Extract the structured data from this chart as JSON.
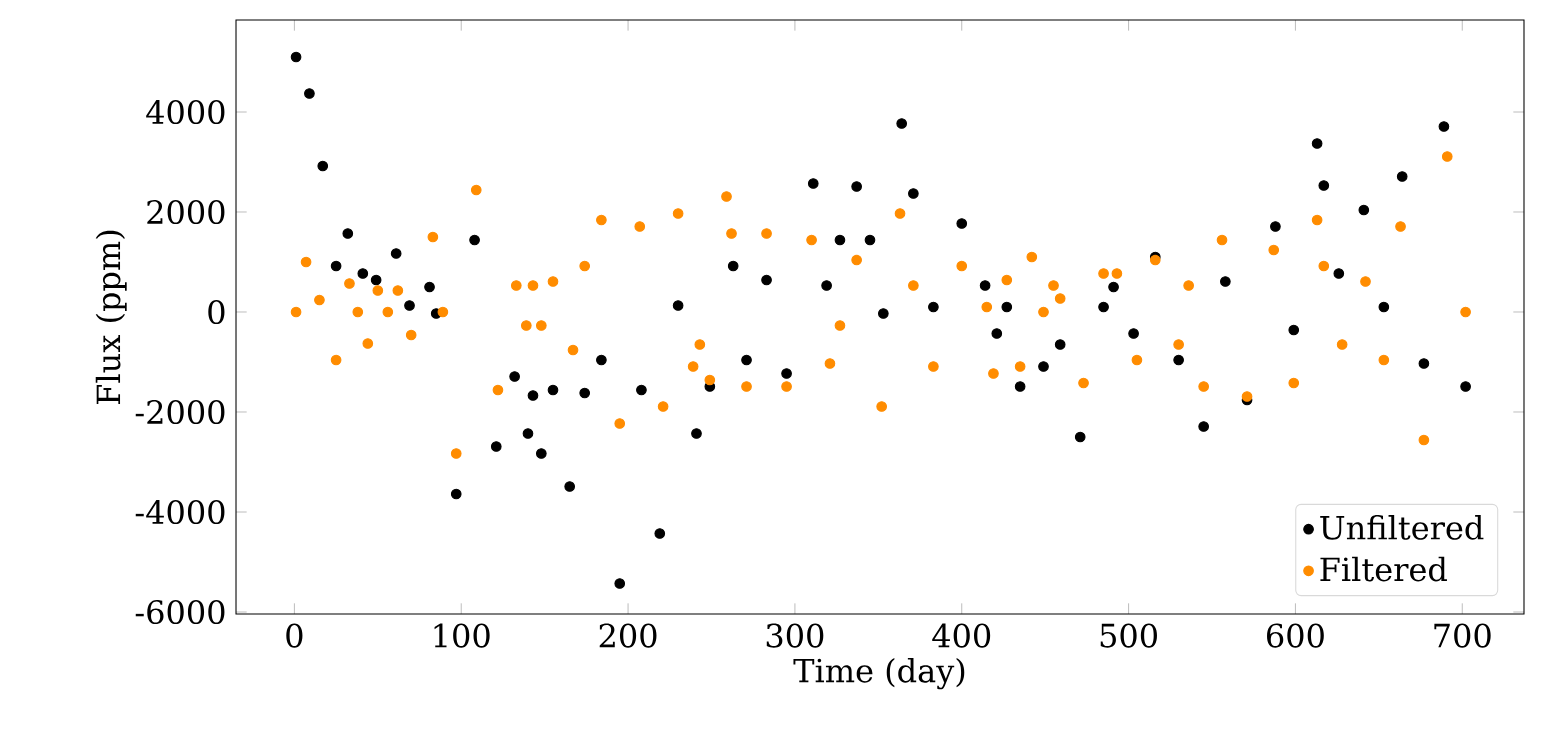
{
  "chart_data": {
    "type": "scatter",
    "xlabel": "Time (day)",
    "ylabel": "Flux (ppm)",
    "xlim": [
      -35,
      737
    ],
    "ylim": [
      -6040,
      5840
    ],
    "xticks": [
      0,
      100,
      200,
      300,
      400,
      500,
      600,
      700
    ],
    "yticks": [
      -6000,
      -4000,
      -2000,
      0,
      2000,
      4000
    ],
    "grid": false,
    "legend": "bottom right",
    "marker": "circle",
    "series": [
      {
        "name": "Unfiltered",
        "color": "#000000",
        "x": [
          1,
          9,
          17,
          25,
          32,
          41,
          49,
          61,
          69,
          81,
          85,
          97,
          108,
          121,
          132,
          140,
          143,
          148,
          155,
          165,
          174,
          184,
          195,
          208,
          219,
          230,
          241,
          249,
          263,
          271,
          283,
          295,
          311,
          319,
          327,
          337,
          345,
          353,
          364,
          371,
          383,
          400,
          414,
          421,
          427,
          435,
          449,
          459,
          471,
          485,
          491,
          503,
          516,
          530,
          545,
          558,
          571,
          588,
          599,
          613,
          617,
          626,
          641,
          653,
          664,
          677,
          689,
          702
        ],
        "values": [
          5100,
          4370,
          2920,
          920,
          1570,
          770,
          640,
          1170,
          130,
          500,
          -30,
          -3640,
          1440,
          -2690,
          -1290,
          -2430,
          -1670,
          -2830,
          -1560,
          -3490,
          -1620,
          -960,
          -5430,
          -1560,
          -4430,
          130,
          -2430,
          -1490,
          920,
          -960,
          640,
          -1230,
          2570,
          530,
          1440,
          2510,
          1440,
          -30,
          3770,
          2370,
          100,
          1770,
          530,
          -430,
          100,
          -1490,
          -1090,
          -650,
          -2500,
          100,
          500,
          -430,
          1100,
          -960,
          -2290,
          610,
          -1760,
          1710,
          -360,
          3370,
          2530,
          770,
          2040,
          100,
          2710,
          -1030,
          3710,
          -1490
        ]
      },
      {
        "name": "Filtered",
        "color": "#ff8c00",
        "x": [
          1,
          7,
          15,
          25,
          33,
          38,
          44,
          50,
          56,
          62,
          70,
          83,
          89,
          97,
          109,
          122,
          133,
          139,
          143,
          148,
          155,
          167,
          174,
          184,
          195,
          207,
          221,
          230,
          239,
          243,
          249,
          259,
          262,
          271,
          283,
          295,
          310,
          321,
          327,
          337,
          352,
          363,
          371,
          383,
          400,
          415,
          419,
          427,
          435,
          442,
          449,
          455,
          459,
          473,
          485,
          493,
          505,
          516,
          530,
          536,
          545,
          556,
          571,
          587,
          599,
          613,
          617,
          628,
          642,
          653,
          663,
          677,
          691,
          702
        ],
        "values": [
          0,
          1000,
          240,
          -960,
          570,
          0,
          -630,
          430,
          0,
          430,
          -460,
          1500,
          0,
          -2830,
          2440,
          -1560,
          530,
          -270,
          530,
          -270,
          610,
          -760,
          920,
          1840,
          -2230,
          1710,
          -1890,
          1970,
          -1090,
          -650,
          -1360,
          2310,
          1570,
          -1490,
          1570,
          -1490,
          1440,
          -1030,
          -270,
          1040,
          -1890,
          1970,
          530,
          -1090,
          920,
          100,
          -1230,
          640,
          -1090,
          1100,
          0,
          530,
          270,
          -1420,
          770,
          770,
          -960,
          1040,
          -650,
          530,
          -1490,
          1440,
          -1690,
          1240,
          -1420,
          1840,
          920,
          -650,
          610,
          -960,
          1710,
          -2560,
          3110,
          0
        ]
      }
    ]
  }
}
